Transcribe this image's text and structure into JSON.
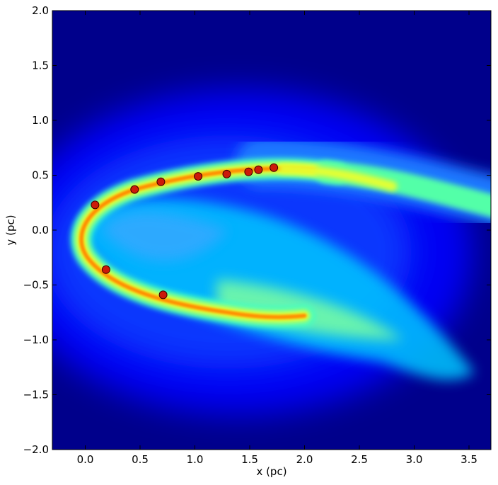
{
  "chart_data": {
    "type": "heatmap",
    "title": "",
    "xlabel": "x (pc)",
    "ylabel": "y (pc)",
    "xlim": [
      -0.3,
      3.7
    ],
    "ylim": [
      -2.0,
      2.0
    ],
    "x_ticks": [
      0.0,
      0.5,
      1.0,
      1.5,
      2.0,
      2.5,
      3.0,
      3.5
    ],
    "x_tick_labels": [
      "0.0",
      "0.5",
      "1.0",
      "1.5",
      "2.0",
      "2.5",
      "3.0",
      "3.5"
    ],
    "y_ticks": [
      -2.0,
      -1.5,
      -1.0,
      -0.5,
      0.0,
      0.5,
      1.0,
      1.5,
      2.0
    ],
    "y_tick_labels": [
      "−2.0",
      "−1.5",
      "−1.0",
      "−0.5",
      "0.0",
      "0.5",
      "1.0",
      "1.5",
      "2.0"
    ],
    "colormap": "jet",
    "background_color": "#00008b",
    "grid": false,
    "series": [
      {
        "type": "scatter",
        "marker_color": "#cc1a0a",
        "points": [
          {
            "x": 0.09,
            "y": 0.23
          },
          {
            "x": 0.45,
            "y": 0.37
          },
          {
            "x": 0.69,
            "y": 0.44
          },
          {
            "x": 1.03,
            "y": 0.49
          },
          {
            "x": 1.29,
            "y": 0.51
          },
          {
            "x": 1.49,
            "y": 0.53
          },
          {
            "x": 1.58,
            "y": 0.55
          },
          {
            "x": 1.72,
            "y": 0.57
          },
          {
            "x": 0.19,
            "y": -0.36
          },
          {
            "x": 0.71,
            "y": -0.59
          }
        ]
      }
    ]
  }
}
